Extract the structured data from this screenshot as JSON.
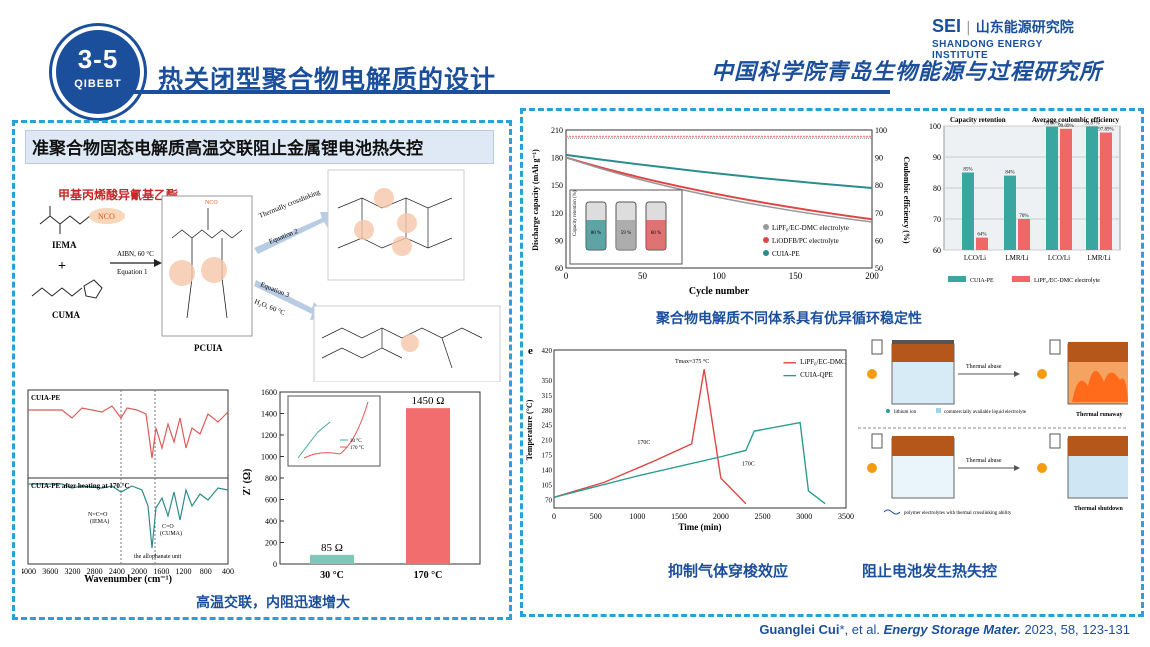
{
  "header": {
    "badge_number": "3-5",
    "badge_org": "QIBEBT",
    "title": "热关闭型聚合物电解质的设计",
    "sei_abbr": "SEI",
    "sei_cn": "山东能源研究院",
    "sei_en": "SHANDONG ENERGY INSTITUTE",
    "cas_calligraphy": "中国科学院青岛生物能源与过程研究所"
  },
  "left_panel": {
    "subtitle": "准聚合物固态电解质高温交联阻止金属锂电池热失控",
    "monomer_cn": "甲基丙烯酸异氰基乙酯",
    "iema": "IEMA",
    "cuma": "CUMA",
    "plus": "+",
    "aibn": "AIBN, 60 °C",
    "eq1": "Equation 1",
    "pcuia": "PCUIA",
    "thermal": "Thermally crosslinking",
    "eq2": "Equation 2",
    "eq3": "Equation 3",
    "h2o": "H₂O, 60 °C",
    "nco": "NCO",
    "caption": "高温交联，内阻迅速增大"
  },
  "ftir": {
    "label_top": "CUIA-PE",
    "label_bottom": "CUIA-PE after heating at 170 °C",
    "ann_nco": "N=C=O",
    "ann_nco2": "(IEMA)",
    "ann_co": "C=O",
    "ann_co2": "(CUMA)",
    "ann_allo": "the allophanate unit",
    "xlabel": "Wavenumber (cm⁻¹)",
    "xticks": [
      "4000",
      "3600",
      "3200",
      "2800",
      "2400",
      "2000",
      "1600",
      "1200",
      "800",
      "400"
    ]
  },
  "resistance_chart": {
    "ylabel": "Z' (Ω)",
    "categories": [
      "30 °C",
      "170 °C"
    ],
    "values": [
      85,
      1450
    ],
    "labels": [
      "85 Ω",
      "1450 Ω"
    ],
    "yticks": [
      "0",
      "200",
      "400",
      "600",
      "800",
      "1000",
      "1200",
      "1400",
      "1600"
    ],
    "ylim": [
      0,
      1600
    ],
    "colors": [
      "#7ec8b8",
      "#f26d6d"
    ],
    "inset_legend": [
      "30 °C",
      "170 °C"
    ]
  },
  "cycling_chart": {
    "ylabel_left": "Discharge capacity (mAh g⁻¹)",
    "ylabel_right": "Coulombic efficiency (%)",
    "xlabel": "Cycle number",
    "xticks": [
      "0",
      "50",
      "100",
      "150",
      "200"
    ],
    "yticks_left": [
      "60",
      "90",
      "120",
      "150",
      "180",
      "210"
    ],
    "yticks_right": [
      "50",
      "60",
      "70",
      "80",
      "90",
      "100"
    ],
    "legend": [
      "LiPF₆/EC-DMC electrolyte",
      "LiODFB/PC electrolyte",
      "CUIA-PE"
    ],
    "inset_label": "Capacity retention (%)",
    "inset_values": [
      "80 %",
      "59 %",
      "60 %"
    ],
    "caption": "聚合物电解质不同体系具有优异循环稳定性"
  },
  "bar3d_chart": {
    "title_left": "Capacity retention",
    "title_right": "Average coulombic efficiency",
    "categories": [
      "LCO/Li",
      "LMR/Li",
      "LCO/Li",
      "LMR/Li"
    ],
    "cuia": [
      85,
      84,
      99.8,
      99.87
    ],
    "lipf6": [
      64,
      70,
      99.09,
      97.89
    ],
    "labels_cuia": [
      "85%",
      "84%",
      "99.80%",
      "99.87%"
    ],
    "labels_lipf6": [
      "64%",
      "70%",
      "99.09%",
      "97.89%"
    ],
    "yticks": [
      "60",
      "70",
      "80",
      "90",
      "100"
    ],
    "ylim": [
      60,
      100
    ],
    "legend": [
      "CUIA-PE",
      "LiPF₆/EC-DMC electrolyte"
    ]
  },
  "temp_chart": {
    "panel_letter": "e",
    "ylabel": "Temperature (°C)",
    "xlabel": "Time (min)",
    "xticks": [
      "0",
      "500",
      "1000",
      "1500",
      "2000",
      "2500",
      "3000",
      "3500"
    ],
    "yticks": [
      "70",
      "105",
      "140",
      "175",
      "210",
      "245",
      "280",
      "315",
      "350",
      "420"
    ],
    "legend": [
      "LiPF₆/EC-DMC",
      "CUIA-QPE"
    ],
    "annot_tmax": "Tmax=375 °C",
    "annot_170a": "170C",
    "annot_170b": "170C",
    "caption": "抑制气体穿梭效应"
  },
  "schematic": {
    "thermal_abuse_1": "Thermal abuse",
    "thermal_abuse_2": "Thermal abuse",
    "runaway": "Thermal runaway",
    "shutdown": "Thermal shutdown",
    "legend1": "lithium ion",
    "legend2": "commercially available liquid electrolyte",
    "legend3": "polymer electrolytes with thermal crosslinking ability",
    "caption": "阻止电池发生热失控"
  },
  "reference": {
    "author": "Guanglei Cui",
    "rest": "*, et al. ",
    "journal": "Energy Storage Mater.",
    "details": " 2023, 58, 123-131"
  }
}
